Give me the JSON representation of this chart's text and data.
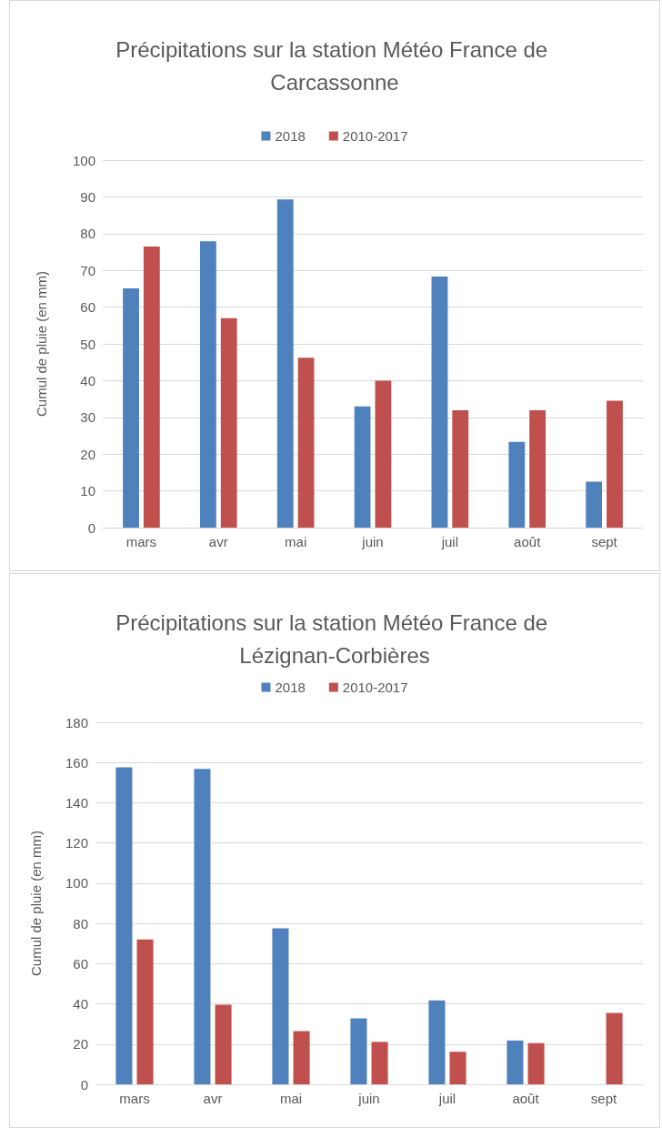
{
  "chart_data": [
    {
      "type": "bar",
      "title": "Précipitations sur la station Météo France de Carcassonne",
      "ylabel": "Cumul de pluie (en mm)",
      "categories": [
        "mars",
        "avr",
        "mai",
        "juin",
        "juil",
        "août",
        "sept"
      ],
      "series": [
        {
          "name": "2018",
          "color": "#4f81bd",
          "values": [
            65.1,
            77.9,
            89.3,
            33.0,
            68.3,
            23.3,
            12.5
          ]
        },
        {
          "name": "2010-2017",
          "color": "#c0504d",
          "values": [
            76.5,
            57.0,
            46.2,
            40.0,
            31.9,
            31.9,
            34.5
          ]
        }
      ],
      "ylim": [
        0,
        100
      ],
      "yticks": [
        0,
        10,
        20,
        30,
        40,
        50,
        60,
        70,
        80,
        90,
        100
      ],
      "grid": "y",
      "legend": "top"
    },
    {
      "type": "bar",
      "title": "Précipitations sur la station Météo France de Lézignan-Corbières",
      "ylabel": "Cumul de pluie (en mm)",
      "categories": [
        "mars",
        "avr",
        "mai",
        "juin",
        "juil",
        "août",
        "sept"
      ],
      "series": [
        {
          "name": "2018",
          "color": "#4f81bd",
          "values": [
            157.6,
            156.8,
            77.6,
            32.8,
            41.7,
            21.8,
            0
          ]
        },
        {
          "name": "2010-2017",
          "color": "#c0504d",
          "values": [
            72.0,
            39.6,
            26.5,
            21.1,
            16.2,
            20.5,
            35.5
          ]
        }
      ],
      "ylim": [
        0,
        180
      ],
      "yticks": [
        0,
        20,
        40,
        60,
        80,
        100,
        120,
        140,
        160,
        180
      ],
      "grid": "y",
      "legend": "top"
    }
  ]
}
